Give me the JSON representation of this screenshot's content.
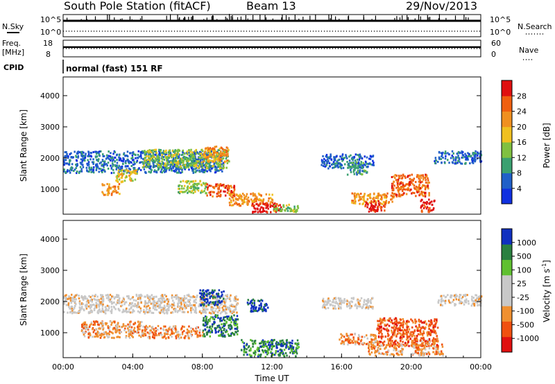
{
  "header": {
    "station": "South Pole Station (fitACF)",
    "beam": "Beam 13",
    "date": "29/Nov/2013"
  },
  "control_labels": {
    "nsky": "N.Sky",
    "nsky_top": "10^5",
    "nsky_bottom": "10^0",
    "nsearch": "N.Search",
    "nsearch_top": "10^5",
    "nsearch_bottom": "10^0",
    "freq_line1": "Freq.",
    "freq_line2": "[MHz]",
    "freq_top": "18",
    "freq_bottom": "8",
    "nave": "Nave",
    "nave_top": "60",
    "nave_bottom": "0",
    "cpid": "CPID",
    "cpid_text": "normal (fast) 151 RF"
  },
  "colors": {
    "power": [
      "#1030e0",
      "#2060c8",
      "#3aa070",
      "#80c040",
      "#f0c020",
      "#f09020",
      "#f06010",
      "#e01010"
    ],
    "velocity": [
      "#e01010",
      "#f05010",
      "#f09030",
      "#c8c8c8",
      "#c8c8c8",
      "#60c030",
      "#2a8040",
      "#1030c0"
    ]
  },
  "chart_data": [
    {
      "type": "heatmap",
      "quantity": "power",
      "ylabel": "Slant Range [km]",
      "xlabel": "",
      "yticks": [
        "1000",
        "2000",
        "3000",
        "4000"
      ],
      "ylim": [
        200,
        4600
      ],
      "xlim": [
        0,
        24
      ],
      "colorbar_label": "Power [dB]",
      "colorbar_ticks": [
        "4",
        "8",
        "12",
        "16",
        "20",
        "24",
        "28"
      ],
      "patches": [
        {
          "t0": 0.0,
          "t1": 9.2,
          "r0": 1550,
          "r1": 2250,
          "level": 1
        },
        {
          "t0": 4.5,
          "t1": 9.5,
          "r0": 1700,
          "r1": 2300,
          "level": 3
        },
        {
          "t0": 8.0,
          "t1": 9.5,
          "r0": 1900,
          "r1": 2400,
          "level": 5
        },
        {
          "t0": 2.2,
          "t1": 3.2,
          "r0": 850,
          "r1": 1200,
          "level": 5
        },
        {
          "t0": 3.0,
          "t1": 4.2,
          "r0": 1250,
          "r1": 1650,
          "level": 4
        },
        {
          "t0": 6.5,
          "t1": 8.2,
          "r0": 900,
          "r1": 1300,
          "level": 3
        },
        {
          "t0": 8.2,
          "t1": 9.8,
          "r0": 800,
          "r1": 1200,
          "level": 6
        },
        {
          "t0": 9.5,
          "t1": 12.0,
          "r0": 500,
          "r1": 900,
          "level": 5
        },
        {
          "t0": 10.8,
          "t1": 12.5,
          "r0": 280,
          "r1": 600,
          "level": 7
        },
        {
          "t0": 12.0,
          "t1": 13.5,
          "r0": 300,
          "r1": 550,
          "level": 3
        },
        {
          "t0": 14.8,
          "t1": 17.8,
          "r0": 1700,
          "r1": 2150,
          "level": 1
        },
        {
          "t0": 16.3,
          "t1": 17.5,
          "r0": 1500,
          "r1": 1900,
          "level": 2
        },
        {
          "t0": 16.5,
          "t1": 19.0,
          "r0": 550,
          "r1": 900,
          "level": 5
        },
        {
          "t0": 17.3,
          "t1": 18.5,
          "r0": 300,
          "r1": 650,
          "level": 7
        },
        {
          "t0": 18.8,
          "t1": 21.0,
          "r0": 800,
          "r1": 1500,
          "level": 6
        },
        {
          "t0": 20.5,
          "t1": 21.3,
          "r0": 300,
          "r1": 700,
          "level": 7
        },
        {
          "t0": 21.3,
          "t1": 24.0,
          "r0": 1850,
          "r1": 2250,
          "level": 1
        }
      ]
    },
    {
      "type": "heatmap",
      "quantity": "velocity",
      "ylabel": "Slant Range [km]",
      "xlabel": "Time UT",
      "yticks": [
        "1000",
        "2000",
        "3000",
        "4000"
      ],
      "ylim": [
        200,
        4600
      ],
      "xlim": [
        0,
        24
      ],
      "xticks": [
        "00:00",
        "04:00",
        "08:00",
        "12:00",
        "16:00",
        "20:00",
        "00:00"
      ],
      "colorbar_label": "Velocity [m s",
      "colorbar_label_sup": "-1",
      "colorbar_label_end": "]",
      "colorbar_ticks": [
        "-1000",
        "-500",
        "-100",
        "-25",
        "25",
        "100",
        "500",
        "1000"
      ],
      "patches": [
        {
          "t0": 0.0,
          "t1": 10.0,
          "r0": 1650,
          "r1": 2250,
          "level": 3
        },
        {
          "t0": 1.0,
          "t1": 4.5,
          "r0": 850,
          "r1": 1400,
          "level": 2
        },
        {
          "t0": 4.5,
          "t1": 8.0,
          "r0": 850,
          "r1": 1250,
          "level": 2
        },
        {
          "t0": 7.8,
          "t1": 9.2,
          "r0": 1900,
          "r1": 2400,
          "level": 7
        },
        {
          "t0": 8.0,
          "t1": 10.0,
          "r0": 900,
          "r1": 1600,
          "level": 6
        },
        {
          "t0": 10.2,
          "t1": 13.5,
          "r0": 250,
          "r1": 800,
          "level": 6
        },
        {
          "t0": 10.5,
          "t1": 11.8,
          "r0": 1700,
          "r1": 2100,
          "level": 7
        },
        {
          "t0": 14.8,
          "t1": 17.8,
          "r0": 1800,
          "r1": 2150,
          "level": 3
        },
        {
          "t0": 15.8,
          "t1": 18.0,
          "r0": 650,
          "r1": 1000,
          "level": 2
        },
        {
          "t0": 18.0,
          "t1": 21.5,
          "r0": 600,
          "r1": 1500,
          "level": 1
        },
        {
          "t0": 17.5,
          "t1": 19.5,
          "r0": 300,
          "r1": 650,
          "level": 2
        },
        {
          "t0": 20.0,
          "t1": 21.8,
          "r0": 300,
          "r1": 800,
          "level": 2
        },
        {
          "t0": 21.5,
          "t1": 24.0,
          "r0": 1900,
          "r1": 2250,
          "level": 3
        }
      ]
    }
  ]
}
